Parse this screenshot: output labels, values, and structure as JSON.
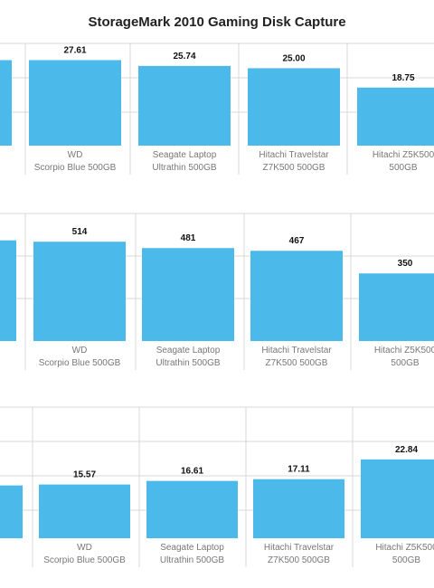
{
  "title": "StorageMark 2010 Gaming Disk Capture",
  "chart_data": [
    {
      "type": "bar",
      "categories": [
        [
          "WD",
          "Scorpio Blue 500GB"
        ],
        [
          "Seagate Laptop",
          "Ultrathin 500GB"
        ],
        [
          "Hitachi Travelstar",
          "Z7K500 500GB"
        ],
        [
          "Hitachi Z5K500",
          "500GB"
        ]
      ],
      "values": [
        27.61,
        25.74,
        25.0,
        18.75
      ],
      "value_labels": [
        "27.61",
        "25.74",
        "25.00",
        "18.75"
      ],
      "left_partial_value": 27.61,
      "ylim": [
        0,
        33
      ],
      "grid": true,
      "color": "#4bb9ea"
    },
    {
      "type": "bar",
      "categories": [
        [
          "WD",
          "Scorpio Blue 500GB"
        ],
        [
          "Seagate Laptop",
          "Ultrathin 500GB"
        ],
        [
          "Hitachi Travelstar",
          "Z7K500 500GB"
        ],
        [
          "Hitachi Z5K500",
          "500GB"
        ]
      ],
      "values": [
        514,
        481,
        467,
        350
      ],
      "value_labels": [
        "514",
        "481",
        "467",
        "350"
      ],
      "left_partial_value": 521,
      "ylim": [
        0,
        660
      ],
      "grid": true,
      "color": "#4bb9ea"
    },
    {
      "type": "bar",
      "categories": [
        [
          "WD",
          "Scorpio Blue 500GB"
        ],
        [
          "Seagate Laptop",
          "Ultrathin 500GB"
        ],
        [
          "Hitachi Travelstar",
          "Z7K500 500GB"
        ],
        [
          "Hitachi Z5K500",
          "500GB"
        ]
      ],
      "values": [
        15.57,
        16.61,
        17.11,
        22.84
      ],
      "value_labels": [
        "15.57",
        "16.61",
        "17.11",
        "22.84"
      ],
      "left_partial_value": 15.3,
      "ylim": [
        0,
        38
      ],
      "grid": true,
      "color": "#4bb9ea"
    }
  ]
}
